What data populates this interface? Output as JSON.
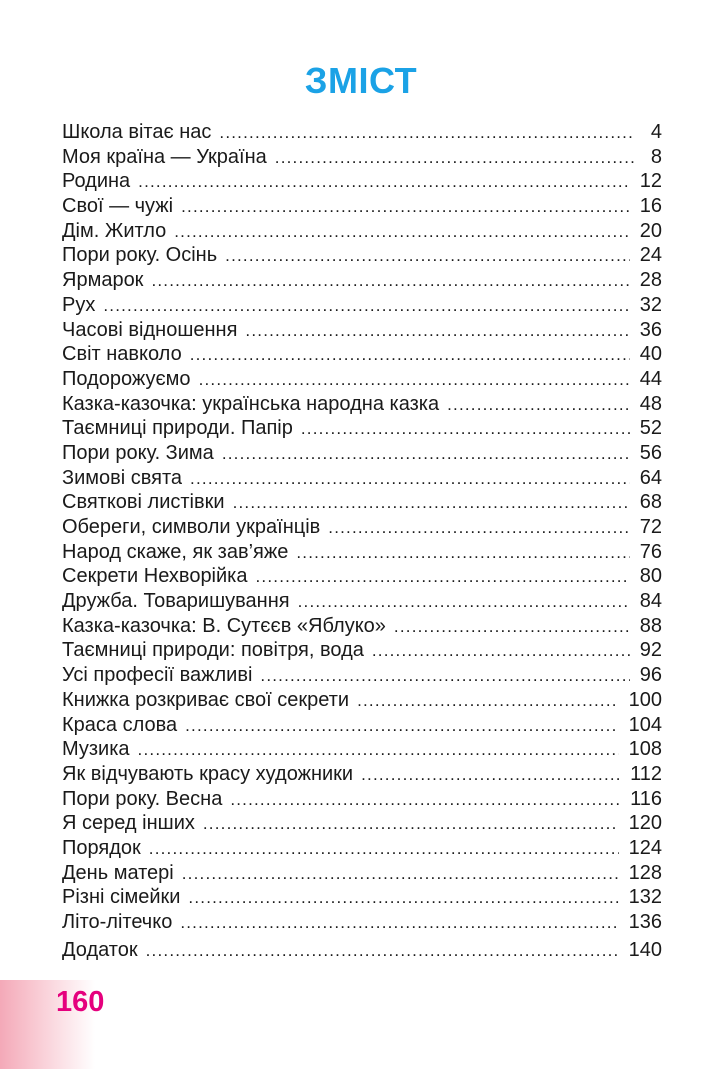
{
  "title": "ЗМІСТ",
  "colors": {
    "title": "#1ba2e6",
    "page_number": "#e5007d",
    "band": "#f4a9b8"
  },
  "entries": [
    {
      "label": "Школа вітає нас",
      "page": "4"
    },
    {
      "label": "Моя країна — Україна",
      "page": "8"
    },
    {
      "label": "Родина",
      "page": "12"
    },
    {
      "label": "Свої — чужі",
      "page": "16"
    },
    {
      "label": "Дім. Житло",
      "page": "20"
    },
    {
      "label": "Пори року. Осінь",
      "page": "24"
    },
    {
      "label": "Ярмарок",
      "page": "28"
    },
    {
      "label": "Рух",
      "page": "32"
    },
    {
      "label": "Часові відношення",
      "page": "36"
    },
    {
      "label": "Світ навколо",
      "page": "40"
    },
    {
      "label": "Подорожуємо",
      "page": "44"
    },
    {
      "label": "Казка-казочка: українська народна казка",
      "page": "48"
    },
    {
      "label": "Таємниці природи. Папір",
      "page": "52"
    },
    {
      "label": "Пори року. Зима",
      "page": "56"
    },
    {
      "label": "Зимові свята",
      "page": "64"
    },
    {
      "label": "Святкові листівки",
      "page": "68"
    },
    {
      "label": "Обереги, символи українців",
      "page": "72"
    },
    {
      "label": "Народ скаже, як зав’яже",
      "page": "76"
    },
    {
      "label": "Секрети Нехворійка",
      "page": "80"
    },
    {
      "label": "Дружба. Товаришування",
      "page": "84"
    },
    {
      "label": "Казка-казочка: В. Сутєєв «Яблуко»",
      "page": "88"
    },
    {
      "label": "Таємниці природи: повітря, вода",
      "page": "92"
    },
    {
      "label": "Усі професії важливі",
      "page": "96"
    },
    {
      "label": "Книжка розкриває свої секрети",
      "page": "100"
    },
    {
      "label": "Краса слова",
      "page": "104"
    },
    {
      "label": "Музика",
      "page": "108"
    },
    {
      "label": "Як відчувають красу художники",
      "page": "112"
    },
    {
      "label": "Пори року. Весна",
      "page": "116"
    },
    {
      "label": "Я серед інших",
      "page": "120"
    },
    {
      "label": "Порядок",
      "page": "124"
    },
    {
      "label": "День матері",
      "page": "128"
    },
    {
      "label": "Різні сімейки",
      "page": "132"
    },
    {
      "label": "Літо-літечко",
      "page": "136"
    },
    {
      "label": "Додаток",
      "page": "140"
    }
  ],
  "page_number": "160"
}
